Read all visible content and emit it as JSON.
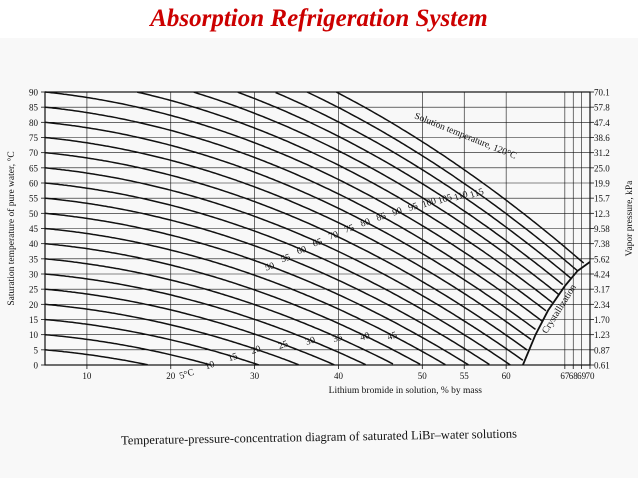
{
  "slide": {
    "title": "Absorption Refrigeration System",
    "caption": "Temperature-pressure-concentration diagram of saturated LiBr–water solutions"
  },
  "colors": {
    "title": "#cc0000",
    "ink": "#111111",
    "background": "#f8f8f8"
  },
  "chart_data": {
    "type": "line",
    "xlabel": "Lithium bromide in solution, % by mass",
    "ylabel": "Saturation temperature of pure water, °C",
    "ylabel_right": "Vapor pressure, kPa",
    "xlim": [
      5,
      70
    ],
    "ylim": [
      0,
      90
    ],
    "x_ticks": [
      "10",
      "20",
      "30",
      "40",
      "50",
      "55",
      "60",
      "67",
      "68",
      "69",
      "70"
    ],
    "x_tick_values": [
      10,
      20,
      30,
      40,
      50,
      55,
      60,
      67,
      68,
      69,
      70
    ],
    "y_ticks": [
      0,
      5,
      10,
      15,
      20,
      25,
      30,
      35,
      40,
      45,
      50,
      55,
      60,
      65,
      70,
      75,
      80,
      85,
      90
    ],
    "right_ticks": [
      {
        "t": 0,
        "label": "0.61"
      },
      {
        "t": 5,
        "label": "0.87"
      },
      {
        "t": 10,
        "label": "1.23"
      },
      {
        "t": 15,
        "label": "1.70"
      },
      {
        "t": 20,
        "label": "2.34"
      },
      {
        "t": 25,
        "label": "3.17"
      },
      {
        "t": 30,
        "label": "4.24"
      },
      {
        "t": 35,
        "label": "5.62"
      },
      {
        "t": 40,
        "label": "7.38"
      },
      {
        "t": 45,
        "label": "9.58"
      },
      {
        "t": 50,
        "label": "12.3"
      },
      {
        "t": 55,
        "label": "15.7"
      },
      {
        "t": 60,
        "label": "19.9"
      },
      {
        "t": 65,
        "label": "25.0"
      },
      {
        "t": 70,
        "label": "31.2"
      },
      {
        "t": 75,
        "label": "38.6"
      },
      {
        "t": 80,
        "label": "47.4"
      },
      {
        "t": 85,
        "label": "57.8"
      },
      {
        "t": 90,
        "label": "70.1"
      }
    ],
    "grid": true,
    "series_note": "Solution temperature",
    "series": [
      {
        "label": "5°C",
        "T": 5
      },
      {
        "label": "10",
        "T": 10
      },
      {
        "label": "15",
        "T": 15
      },
      {
        "label": "20",
        "T": 20
      },
      {
        "label": "25",
        "T": 25
      },
      {
        "label": "30",
        "T": 30
      },
      {
        "label": "35",
        "T": 35
      },
      {
        "label": "40",
        "T": 40
      },
      {
        "label": "45",
        "T": 45
      },
      {
        "label": "50",
        "T": 50
      },
      {
        "label": "55",
        "T": 55
      },
      {
        "label": "60",
        "T": 60
      },
      {
        "label": "65",
        "T": 65
      },
      {
        "label": "70",
        "T": 70
      },
      {
        "label": "75",
        "T": 75
      },
      {
        "label": "80",
        "T": 80
      },
      {
        "label": "85",
        "T": 85
      },
      {
        "label": "90",
        "T": 90
      },
      {
        "label": "95",
        "T": 95
      },
      {
        "label": "100",
        "T": 100
      },
      {
        "label": "105",
        "T": 105
      },
      {
        "label": "110",
        "T": 110
      },
      {
        "label": "115",
        "T": 115
      },
      {
        "label": "Solution temperature, 120°C",
        "T": 120
      }
    ],
    "extra_lines": [
      {
        "label": "Crystallization",
        "points": [
          [
            62,
            0
          ],
          [
            63.5,
            10
          ],
          [
            65,
            18
          ],
          [
            67,
            26
          ],
          [
            68.5,
            31
          ],
          [
            70,
            34
          ]
        ]
      }
    ]
  }
}
